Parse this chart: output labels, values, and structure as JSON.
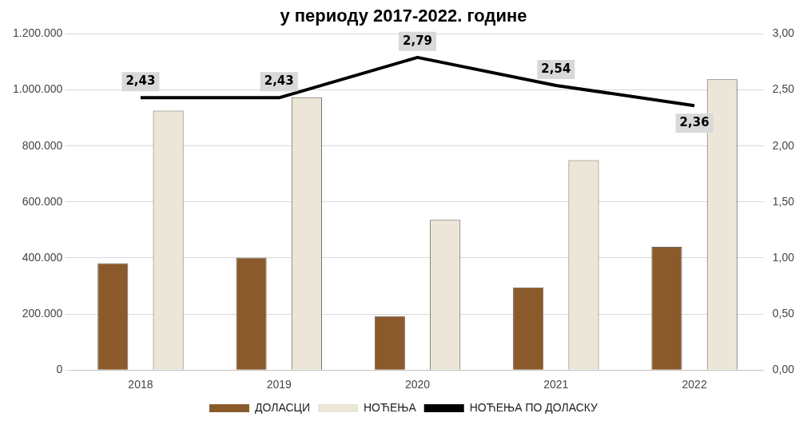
{
  "chart_data": {
    "type": "bar",
    "title": "у периоду 2017-2022. године",
    "categories": [
      "2018",
      "2019",
      "2020",
      "2021",
      "2022"
    ],
    "series": [
      {
        "name": "ДОЛАСЦИ",
        "color": "#8b5a2b",
        "values": [
          381000,
          401000,
          192000,
          295000,
          440000
        ]
      },
      {
        "name": "НОЋЕЊА",
        "color": "#ece6d8",
        "values": [
          926000,
          974000,
          536000,
          749000,
          1038000
        ]
      },
      {
        "name": "НОЋЕЊА ПО ДОЛАСКУ",
        "type": "line",
        "axis": "y2",
        "color": "#000000",
        "values": [
          2.43,
          2.43,
          2.79,
          2.54,
          2.36
        ],
        "value_labels": [
          "2,43",
          "2,43",
          "2,79",
          "2,54",
          "2,36"
        ]
      }
    ],
    "ylim": [
      0,
      1200000
    ],
    "yticks": [
      {
        "value": 0,
        "label": "0"
      },
      {
        "value": 200000,
        "label": "200.000"
      },
      {
        "value": 400000,
        "label": "400.000"
      },
      {
        "value": 600000,
        "label": "600.000"
      },
      {
        "value": 800000,
        "label": "800.000"
      },
      {
        "value": 1000000,
        "label": "1.000.000"
      },
      {
        "value": 1200000,
        "label": "1.200.000"
      }
    ],
    "y2lim": [
      0,
      3
    ],
    "y2ticks": [
      {
        "value": 0,
        "label": "0,00"
      },
      {
        "value": 0.5,
        "label": "0,50"
      },
      {
        "value": 1,
        "label": "1,00"
      },
      {
        "value": 1.5,
        "label": "1,50"
      },
      {
        "value": 2,
        "label": "2,00"
      },
      {
        "value": 2.5,
        "label": "2,50"
      },
      {
        "value": 3,
        "label": "3,00"
      }
    ],
    "grid": "y",
    "legend": "bottom",
    "marker": "none",
    "line_style": "solid"
  }
}
